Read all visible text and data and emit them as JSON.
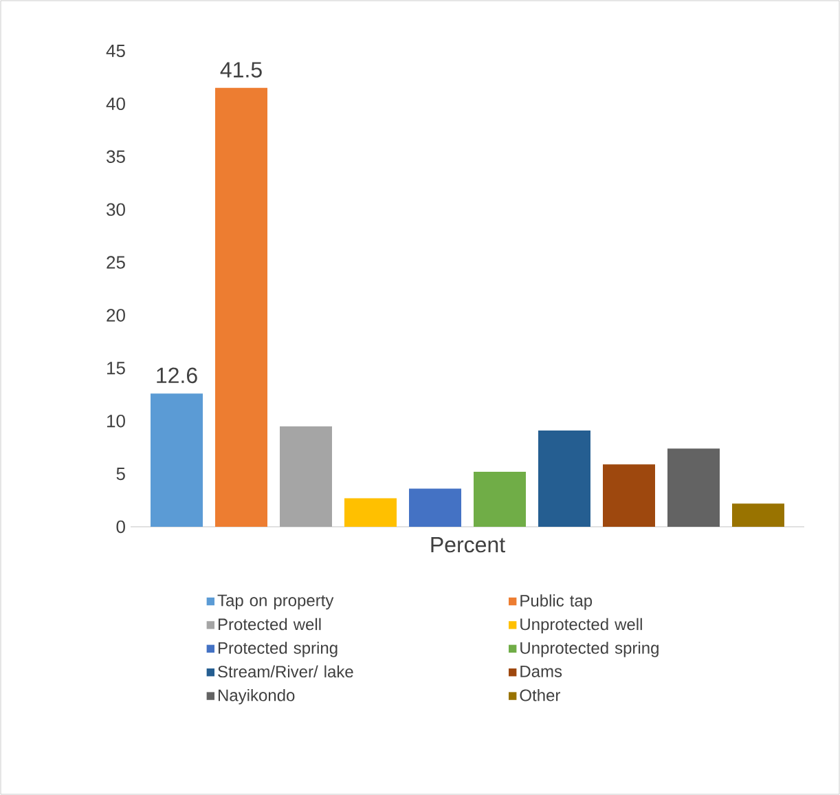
{
  "chart_data": {
    "type": "bar",
    "categories": [
      "Percent"
    ],
    "ylim": [
      0,
      45
    ],
    "yticks": [
      0,
      5,
      10,
      15,
      20,
      25,
      30,
      35,
      40,
      45
    ],
    "legend": "bottom",
    "series": [
      {
        "name": "Tap on property",
        "color": "#5b9bd5",
        "values": [
          12.6
        ],
        "value_labels": [
          "12.6"
        ]
      },
      {
        "name": "Public tap",
        "color": "#ed7d31",
        "values": [
          41.5
        ],
        "value_labels": [
          "41.5"
        ]
      },
      {
        "name": "Protected well",
        "color": "#a5a5a5",
        "values": [
          9.5
        ]
      },
      {
        "name": "Unprotected well",
        "color": "#ffc000",
        "values": [
          2.7
        ]
      },
      {
        "name": "Protected spring",
        "color": "#4472c4",
        "values": [
          3.6
        ]
      },
      {
        "name": "Unprotected spring",
        "color": "#70ad47",
        "values": [
          5.2
        ]
      },
      {
        "name": "Stream/River/ lake",
        "color": "#255e91",
        "values": [
          9.1
        ]
      },
      {
        "name": "Dams",
        "color": "#9e480e",
        "values": [
          5.9
        ]
      },
      {
        "name": "Nayikondo",
        "color": "#636363",
        "values": [
          7.4
        ]
      },
      {
        "name": "Other",
        "color": "#997300",
        "values": [
          2.2
        ]
      }
    ]
  }
}
